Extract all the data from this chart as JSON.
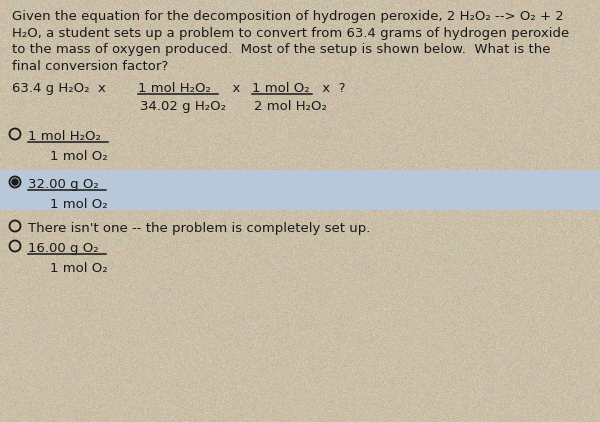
{
  "bg_color": "#cbbfa8",
  "selected_bg_color": "#b8c8d8",
  "text_color": "#1a1a1a",
  "fig_width": 6.0,
  "fig_height": 4.22,
  "dpi": 100,
  "question_line1": "Given the equation for the decomposition of hydrogen peroxide, 2 H₂O₂ --> O₂ + 2",
  "question_line2": "H₂O, a student sets up a problem to convert from 63.4 grams of hydrogen peroxide",
  "question_line3": "to the mass of oxygen produced.  Most of the setup is shown below.  What is the",
  "question_line4": "final conversion factor?",
  "setup_prefix": "63.4 g H₂O₂  x  ",
  "frac1_num": "1 mol H₂O₂",
  "frac1_den": "34.02 g H₂O₂",
  "frac2_num": "1 mol O₂",
  "frac2_den": "2 mol H₂O₂",
  "setup_suffix": " x  ?",
  "choice_A_num": "1 mol H₂O₂",
  "choice_A_den": "1 mol O₂",
  "choice_B_num": "32.00 g O₂",
  "choice_B_den": "1 mol O₂",
  "choice_C_text": "There isn't one -- the problem is completely set up.",
  "choice_D_num": "16.00 g O₂",
  "choice_D_den": "1 mol O₂",
  "fontsize": 9.5,
  "small_fontsize": 9.0
}
